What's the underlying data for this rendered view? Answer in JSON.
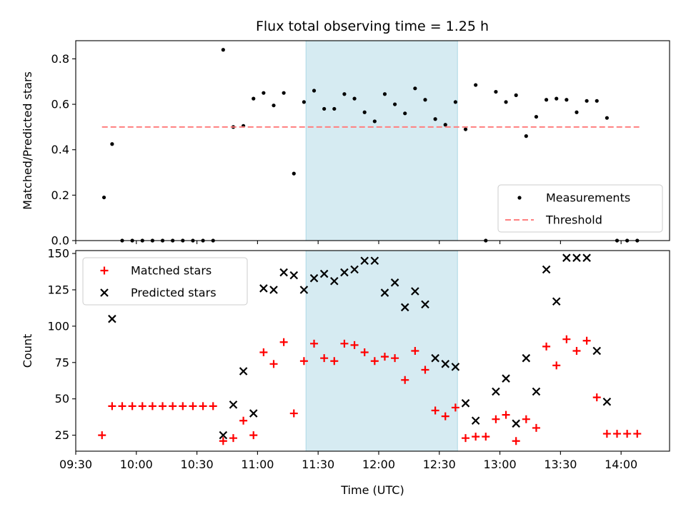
{
  "title": "Flux total observing time = 1.25 h",
  "colors": {
    "shade": "#add8e6",
    "measurement": "#000000",
    "threshold": "#ff7f7f",
    "matched": "#ff0000",
    "predicted": "#000000"
  },
  "chart_data": [
    {
      "type": "scatter",
      "panel": "top",
      "xlabel": "",
      "ylabel": "Matched/Predicted stars",
      "ylim": [
        0,
        0.88
      ],
      "yticks": [
        "0.0",
        "0.2",
        "0.4",
        "0.6",
        "0.8"
      ],
      "xlim": [
        "09:30",
        "14:24"
      ],
      "grid": false,
      "legend_position": "lower right",
      "shaded_span": [
        "11:24",
        "12:39"
      ],
      "series": [
        {
          "name": "Measurements",
          "marker": "dot",
          "points": [
            [
              "09:44",
              0.19
            ],
            [
              "09:48",
              0.425
            ],
            [
              "09:53",
              0.0
            ],
            [
              "09:58",
              0.0
            ],
            [
              "10:03",
              0.0
            ],
            [
              "10:08",
              0.0
            ],
            [
              "10:13",
              0.0
            ],
            [
              "10:18",
              0.0
            ],
            [
              "10:23",
              0.0
            ],
            [
              "10:28",
              0.0
            ],
            [
              "10:33",
              0.0
            ],
            [
              "10:38",
              0.0
            ],
            [
              "10:43",
              0.84
            ],
            [
              "10:48",
              0.5
            ],
            [
              "10:53",
              0.505
            ],
            [
              "10:58",
              0.625
            ],
            [
              "11:03",
              0.65
            ],
            [
              "11:08",
              0.595
            ],
            [
              "11:13",
              0.65
            ],
            [
              "11:18",
              0.295
            ],
            [
              "11:23",
              0.61
            ],
            [
              "11:28",
              0.66
            ],
            [
              "11:33",
              0.58
            ],
            [
              "11:38",
              0.58
            ],
            [
              "11:43",
              0.645
            ],
            [
              "11:48",
              0.625
            ],
            [
              "11:53",
              0.565
            ],
            [
              "11:58",
              0.525
            ],
            [
              "12:03",
              0.645
            ],
            [
              "12:08",
              0.6
            ],
            [
              "12:13",
              0.56
            ],
            [
              "12:18",
              0.67
            ],
            [
              "12:23",
              0.62
            ],
            [
              "12:28",
              0.535
            ],
            [
              "12:33",
              0.51
            ],
            [
              "12:38",
              0.61
            ],
            [
              "12:43",
              0.49
            ],
            [
              "12:48",
              0.685
            ],
            [
              "12:53",
              0.0
            ],
            [
              "12:58",
              0.655
            ],
            [
              "13:03",
              0.61
            ],
            [
              "13:08",
              0.64
            ],
            [
              "13:13",
              0.46
            ],
            [
              "13:18",
              0.545
            ],
            [
              "13:23",
              0.62
            ],
            [
              "13:28",
              0.625
            ],
            [
              "13:33",
              0.62
            ],
            [
              "13:38",
              0.565
            ],
            [
              "13:43",
              0.615
            ],
            [
              "13:48",
              0.615
            ],
            [
              "13:53",
              0.54
            ],
            [
              "13:58",
              0.0
            ],
            [
              "14:03",
              0.0
            ],
            [
              "14:08",
              0.0
            ]
          ]
        },
        {
          "name": "Threshold",
          "style": "dashed",
          "points": [
            [
              "09:43",
              0.5
            ],
            [
              "14:09",
              0.5
            ]
          ]
        }
      ]
    },
    {
      "type": "scatter",
      "panel": "bottom",
      "xlabel": "Time (UTC)",
      "ylabel": "Count",
      "ylim": [
        14,
        152
      ],
      "yticks": [
        "25",
        "50",
        "75",
        "100",
        "125",
        "150"
      ],
      "xticks": [
        "09:30",
        "10:00",
        "10:30",
        "11:00",
        "11:30",
        "12:00",
        "12:30",
        "13:00",
        "13:30",
        "14:00"
      ],
      "xlim": [
        "09:30",
        "14:24"
      ],
      "grid": false,
      "legend_position": "upper left",
      "shaded_span": [
        "11:24",
        "12:39"
      ],
      "series": [
        {
          "name": "Matched stars",
          "marker": "plus",
          "points": [
            [
              "09:43",
              25
            ],
            [
              "09:48",
              45
            ],
            [
              "09:53",
              45
            ],
            [
              "09:58",
              45
            ],
            [
              "10:03",
              45
            ],
            [
              "10:08",
              45
            ],
            [
              "10:13",
              45
            ],
            [
              "10:18",
              45
            ],
            [
              "10:23",
              45
            ],
            [
              "10:28",
              45
            ],
            [
              "10:33",
              45
            ],
            [
              "10:38",
              45
            ],
            [
              "10:43",
              21
            ],
            [
              "10:48",
              23
            ],
            [
              "10:53",
              35
            ],
            [
              "10:58",
              25
            ],
            [
              "11:03",
              82
            ],
            [
              "11:08",
              74
            ],
            [
              "11:13",
              89
            ],
            [
              "11:18",
              40
            ],
            [
              "11:23",
              76
            ],
            [
              "11:28",
              88
            ],
            [
              "11:33",
              78
            ],
            [
              "11:38",
              76
            ],
            [
              "11:43",
              88
            ],
            [
              "11:48",
              87
            ],
            [
              "11:53",
              82
            ],
            [
              "11:58",
              76
            ],
            [
              "12:03",
              79
            ],
            [
              "12:08",
              78
            ],
            [
              "12:13",
              63
            ],
            [
              "12:18",
              83
            ],
            [
              "12:23",
              70
            ],
            [
              "12:28",
              42
            ],
            [
              "12:33",
              38
            ],
            [
              "12:38",
              44
            ],
            [
              "12:43",
              23
            ],
            [
              "12:48",
              24
            ],
            [
              "12:53",
              24
            ],
            [
              "12:58",
              36
            ],
            [
              "13:03",
              39
            ],
            [
              "13:08",
              21
            ],
            [
              "13:13",
              36
            ],
            [
              "13:18",
              30
            ],
            [
              "13:23",
              86
            ],
            [
              "13:28",
              73
            ],
            [
              "13:33",
              91
            ],
            [
              "13:38",
              83
            ],
            [
              "13:43",
              90
            ],
            [
              "13:48",
              51
            ],
            [
              "13:53",
              26
            ],
            [
              "13:58",
              26
            ],
            [
              "14:03",
              26
            ],
            [
              "14:08",
              26
            ]
          ]
        },
        {
          "name": "Predicted stars",
          "marker": "x",
          "points": [
            [
              "09:48",
              105
            ],
            [
              "10:43",
              25
            ],
            [
              "10:48",
              46
            ],
            [
              "10:53",
              69
            ],
            [
              "10:58",
              40
            ],
            [
              "11:03",
              126
            ],
            [
              "11:08",
              125
            ],
            [
              "11:13",
              137
            ],
            [
              "11:18",
              135
            ],
            [
              "11:23",
              125
            ],
            [
              "11:28",
              133
            ],
            [
              "11:33",
              136
            ],
            [
              "11:38",
              131
            ],
            [
              "11:43",
              137
            ],
            [
              "11:48",
              139
            ],
            [
              "11:53",
              145
            ],
            [
              "11:58",
              145
            ],
            [
              "12:03",
              123
            ],
            [
              "12:08",
              130
            ],
            [
              "12:13",
              113
            ],
            [
              "12:18",
              124
            ],
            [
              "12:23",
              115
            ],
            [
              "12:28",
              78
            ],
            [
              "12:33",
              74
            ],
            [
              "12:38",
              72
            ],
            [
              "12:43",
              47
            ],
            [
              "12:48",
              35
            ],
            [
              "12:58",
              55
            ],
            [
              "13:03",
              64
            ],
            [
              "13:08",
              33
            ],
            [
              "13:13",
              78
            ],
            [
              "13:18",
              55
            ],
            [
              "13:23",
              139
            ],
            [
              "13:28",
              117
            ],
            [
              "13:33",
              147
            ],
            [
              "13:38",
              147
            ],
            [
              "13:43",
              147
            ],
            [
              "13:48",
              83
            ],
            [
              "13:53",
              48
            ]
          ]
        }
      ]
    }
  ]
}
